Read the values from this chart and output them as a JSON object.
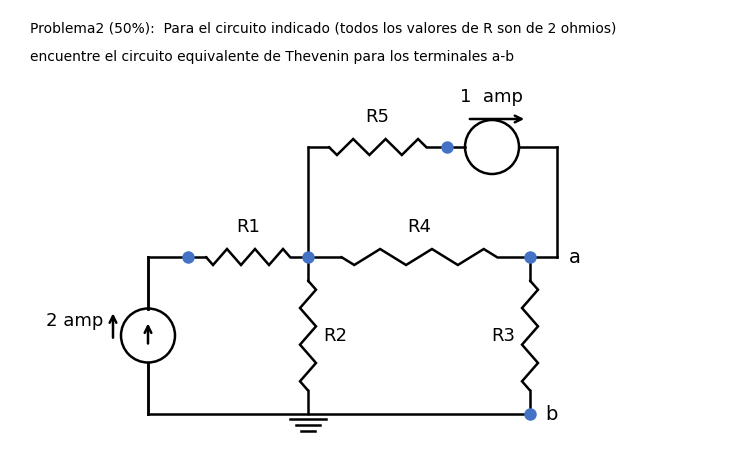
{
  "title_line1": "Problema2 (50%):  Para el circuito indicado (todos los valores de R son de 2 ohmios)",
  "title_line2": "encuentre el circuito equivalente de Thevenin para los terminales a-b",
  "bg_color": "#ffffff",
  "wire_color": "#000000",
  "dot_color": "#4472C4",
  "label_color": "#000000",
  "R1_label": "R1",
  "R2_label": "R2",
  "R3_label": "R3",
  "R4_label": "R4",
  "R5_label": "R5",
  "cs_label": "2 amp",
  "cs2_label": "1  amp",
  "term_a": "a",
  "term_b": "b",
  "figw": 7.34,
  "figh": 4.77,
  "dpi": 100
}
